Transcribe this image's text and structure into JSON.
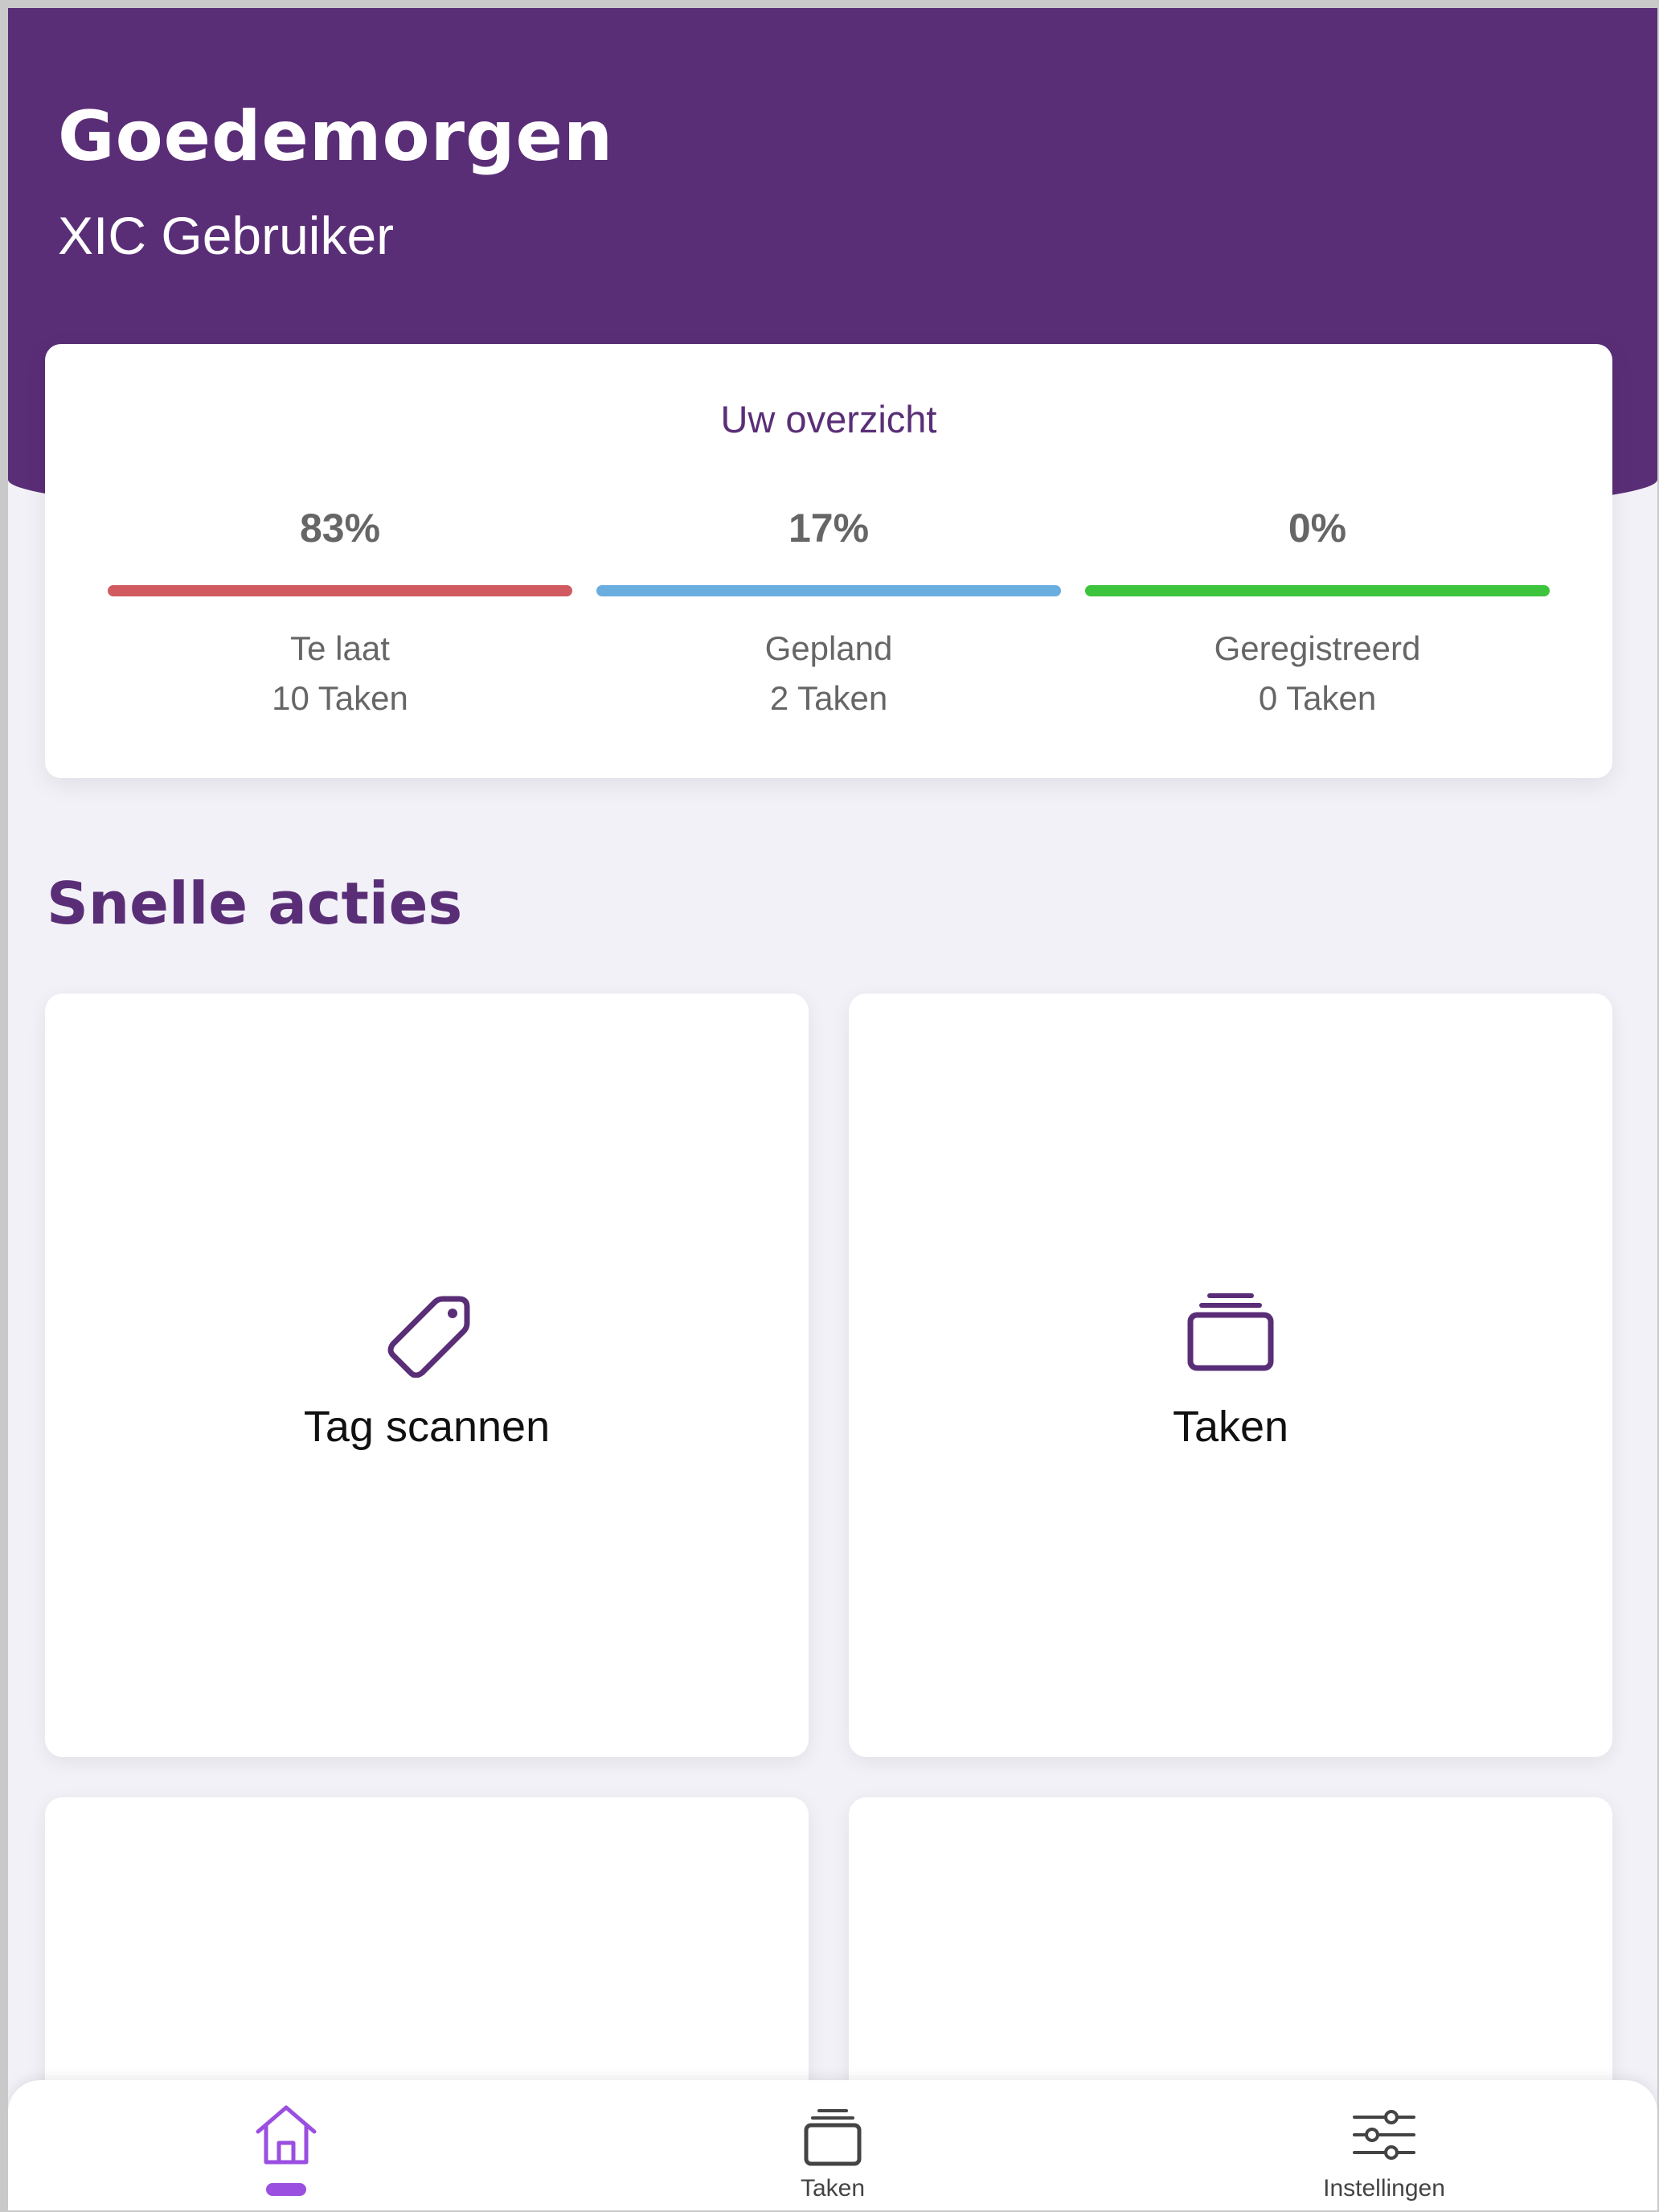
{
  "header": {
    "greeting": "Goedemorgen",
    "username": "XIC Gebruiker"
  },
  "overview": {
    "title": "Uw overzicht",
    "stats": [
      {
        "percent": "83%",
        "label": "Te laat",
        "count": "10 Taken",
        "color": "#d05a5f"
      },
      {
        "percent": "17%",
        "label": "Gepland",
        "count": "2 Taken",
        "color": "#6aaee0"
      },
      {
        "percent": "0%",
        "label": "Geregistreerd",
        "count": "0 Taken",
        "color": "#3cc43c"
      }
    ]
  },
  "quick_actions": {
    "title": "Snelle acties",
    "tiles": [
      {
        "label": "Tag scannen",
        "icon": "tag-icon"
      },
      {
        "label": "Taken",
        "icon": "stack-icon"
      },
      {
        "label": "",
        "icon": ""
      },
      {
        "label": "",
        "icon": ""
      }
    ]
  },
  "nav": {
    "items": [
      {
        "label": "",
        "icon": "home-icon",
        "active": true
      },
      {
        "label": "Taken",
        "icon": "stack-icon",
        "active": false
      },
      {
        "label": "Instellingen",
        "icon": "sliders-icon",
        "active": false
      }
    ],
    "active_color": "#9a4fe0"
  },
  "colors": {
    "brand": "#5a2e77",
    "background": "#f2f1f7"
  }
}
